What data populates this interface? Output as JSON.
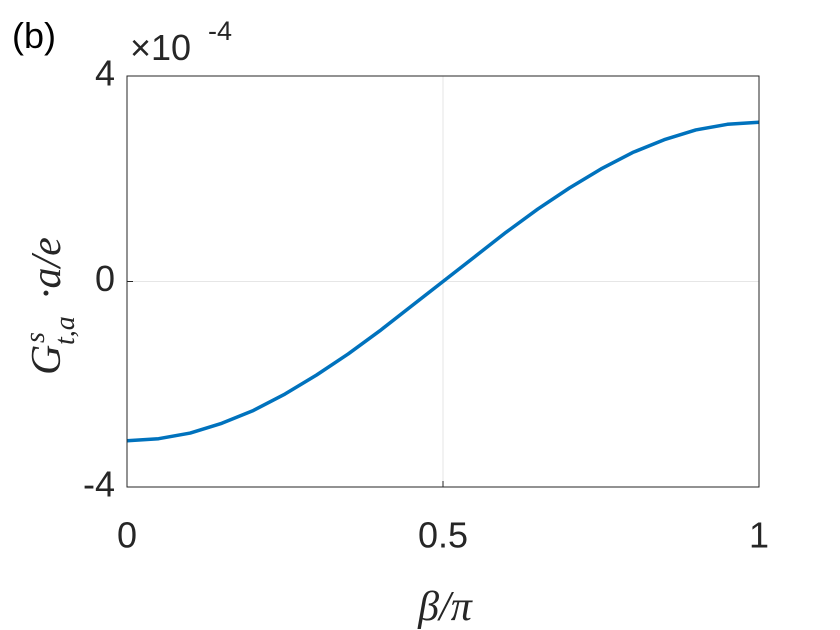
{
  "chart_data": {
    "type": "line",
    "panel_label": "(b)",
    "y_multiplier": {
      "base": "×10",
      "exponent": "-4"
    },
    "xlabel": "β/π",
    "ylabel": {
      "main": "G",
      "sup": "s",
      "sub": "t,a",
      "rest": "·a/e"
    },
    "x": [
      0,
      0.05,
      0.1,
      0.15,
      0.2,
      0.25,
      0.3,
      0.35,
      0.4,
      0.45,
      0.5,
      0.55,
      0.6,
      0.65,
      0.7,
      0.75,
      0.8,
      0.85,
      0.9,
      0.95,
      1
    ],
    "series": [
      {
        "color": "#0072bd",
        "values": [
          -3.1,
          -3.06,
          -2.95,
          -2.76,
          -2.51,
          -2.19,
          -1.82,
          -1.41,
          -0.96,
          -0.48,
          0,
          0.48,
          0.96,
          1.41,
          1.82,
          2.19,
          2.51,
          2.76,
          2.95,
          3.06,
          3.1
        ]
      }
    ],
    "xlim": [
      0,
      1
    ],
    "xticks": [
      0,
      0.5,
      1
    ],
    "ylim": [
      -4,
      4
    ],
    "yticks": [
      -4,
      0,
      4
    ],
    "grid": true
  }
}
